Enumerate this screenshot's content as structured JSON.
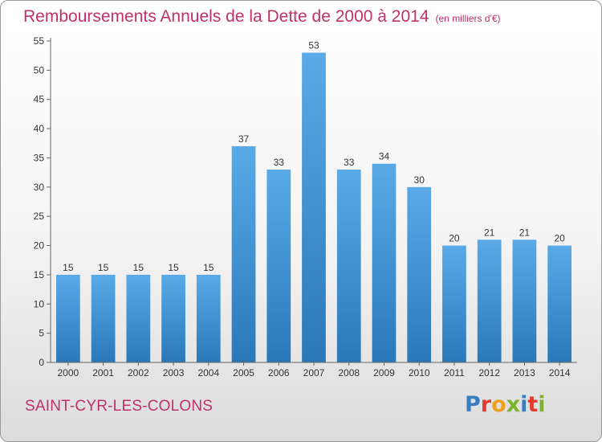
{
  "header": {
    "title": "Remboursements Annuels de la Dette de 2000 à 2014",
    "unit_note": "(en milliers d'€)"
  },
  "footer": {
    "city": "SAINT-CYR-LES-COLONS",
    "logo_text": "Proxiti",
    "logo_colors": [
      "#3a7ebf",
      "#e33b2f",
      "#f0a020",
      "#7bb32e",
      "#3a7ebf",
      "#e33b2f",
      "#7bb32e"
    ]
  },
  "chart_data": {
    "type": "bar",
    "categories": [
      "2000",
      "2001",
      "2002",
      "2003",
      "2004",
      "2005",
      "2006",
      "2007",
      "2008",
      "2009",
      "2010",
      "2011",
      "2012",
      "2013",
      "2014"
    ],
    "values": [
      15,
      15,
      15,
      15,
      15,
      37,
      33,
      53,
      33,
      34,
      30,
      20,
      21,
      21,
      20
    ],
    "ylim": [
      0,
      55
    ],
    "yticks": [
      0,
      5,
      10,
      15,
      20,
      25,
      30,
      35,
      40,
      45,
      50,
      55
    ],
    "grid": false,
    "bar_color_top": "#5aaae8",
    "bar_color_bottom": "#2a78b8"
  }
}
